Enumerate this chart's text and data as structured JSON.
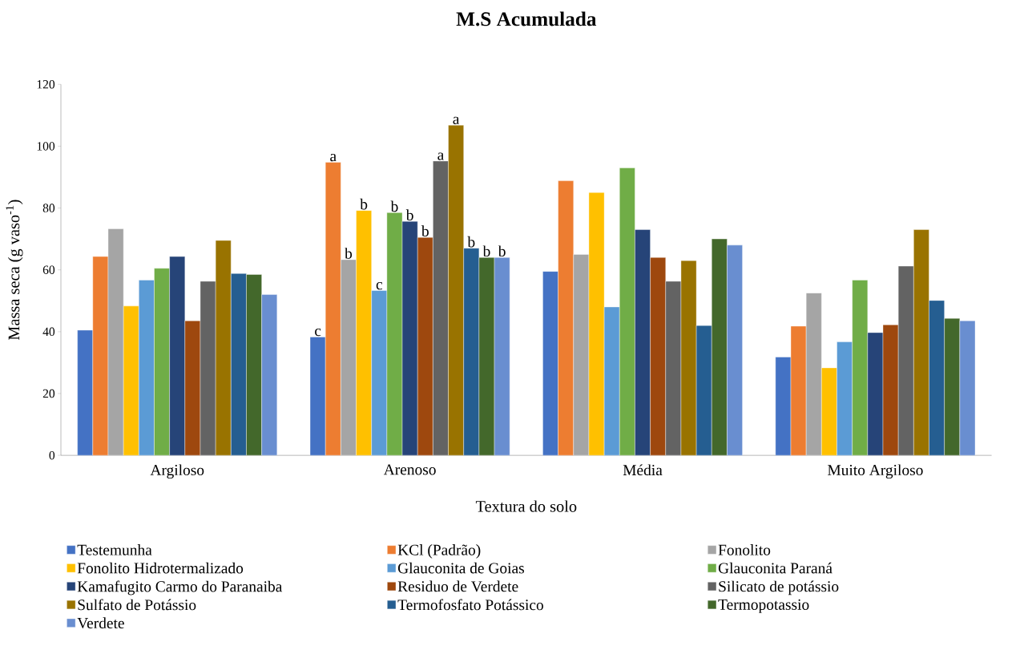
{
  "chart_data": {
    "type": "bar",
    "title": "M.S Acumulada",
    "xlabel": "Textura do solo",
    "ylabel": "Massa seca (g vaso$^{-1}$)",
    "categories": [
      "Argiloso",
      "Arenoso",
      "Média",
      "Muito Argiloso"
    ],
    "ylim": [
      0,
      120
    ],
    "yticks": [
      0,
      20,
      40,
      60,
      80,
      100,
      120
    ],
    "grid": false,
    "legend": "bottom",
    "series": [
      {
        "name": "Testemunha",
        "color": "#4472c4",
        "values": [
          40.5,
          38.3,
          59.5,
          31.8
        ],
        "value_labels": [
          null,
          "c",
          null,
          null
        ]
      },
      {
        "name": "KCl (Padrão)",
        "color": "#ed7d31",
        "values": [
          64.3,
          94.8,
          88.8,
          41.8
        ],
        "value_labels": [
          null,
          "a",
          null,
          null
        ]
      },
      {
        "name": "Fonolito",
        "color": "#a5a5a5",
        "values": [
          73.3,
          63.3,
          65,
          52.5
        ],
        "value_labels": [
          null,
          "b",
          null,
          null
        ]
      },
      {
        "name": "Fonolito Hidrotermalizado",
        "color": "#ffc000",
        "values": [
          48.3,
          79.2,
          85,
          28.3
        ],
        "value_labels": [
          null,
          "b",
          null,
          null
        ]
      },
      {
        "name": "Glauconita de Goias",
        "color": "#5b9bd5",
        "values": [
          56.7,
          53.3,
          48,
          36.7
        ],
        "value_labels": [
          null,
          "c",
          null,
          null
        ]
      },
      {
        "name": "Glauconita Paraná",
        "color": "#70ad47",
        "values": [
          60.5,
          78.5,
          93,
          56.7
        ],
        "value_labels": [
          null,
          "b",
          null,
          null
        ]
      },
      {
        "name": "Kamafugito Carmo do Paranaiba",
        "color": "#264478",
        "values": [
          64.3,
          75.7,
          73,
          39.7
        ],
        "value_labels": [
          null,
          "b",
          null,
          null
        ]
      },
      {
        "name": "Residuo de Verdete",
        "color": "#9e480e",
        "values": [
          43.5,
          70.5,
          64,
          42.2
        ],
        "value_labels": [
          null,
          "b",
          null,
          null
        ]
      },
      {
        "name": "Silicato de potássio",
        "color": "#636363",
        "values": [
          56.3,
          95.2,
          56.3,
          61.2
        ],
        "value_labels": [
          null,
          "a",
          null,
          null
        ]
      },
      {
        "name": "Sulfato de Potássio",
        "color": "#997300",
        "values": [
          69.5,
          106.8,
          63,
          73
        ],
        "value_labels": [
          null,
          "a",
          null,
          null
        ]
      },
      {
        "name": "Termofosfato Potássico",
        "color": "#255e91",
        "values": [
          58.8,
          67,
          42,
          50.1
        ],
        "value_labels": [
          null,
          "b",
          null,
          null
        ]
      },
      {
        "name": "Termopotassio",
        "color": "#43682b",
        "values": [
          58.5,
          64,
          70,
          44.3
        ],
        "value_labels": [
          null,
          "b",
          null,
          null
        ]
      },
      {
        "name": "Verdete",
        "color": "#698ed0",
        "values": [
          52,
          64,
          68,
          43.5
        ],
        "value_labels": [
          null,
          "b",
          null,
          null
        ]
      }
    ]
  }
}
